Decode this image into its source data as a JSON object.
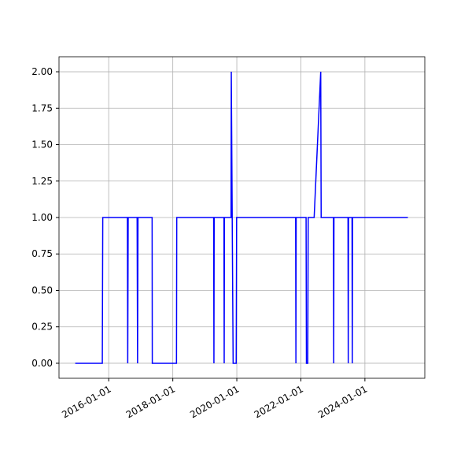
{
  "chart_data": {
    "type": "line",
    "color": "#0000ff",
    "grid": true,
    "x": [
      "2014-12-15",
      "2015-10-20",
      "2015-10-25",
      "2016-08-01",
      "2016-08-05",
      "2016-08-10",
      "2016-11-20",
      "2016-11-25",
      "2016-11-30",
      "2017-05-10",
      "2017-05-12",
      "2018-02-12",
      "2018-02-15",
      "2019-04-12",
      "2019-04-15",
      "2019-04-18",
      "2019-08-07",
      "2019-08-10",
      "2019-08-13",
      "2019-10-27",
      "2019-10-30",
      "2019-11-20",
      "2019-12-25",
      "2019-12-30",
      "2021-11-02",
      "2021-11-05",
      "2021-11-08",
      "2022-03-01",
      "2022-03-05",
      "2022-03-20",
      "2022-03-25",
      "2022-06-01",
      "2022-08-15",
      "2022-08-20",
      "2023-01-07",
      "2023-01-10",
      "2023-01-13",
      "2023-06-22",
      "2023-06-25",
      "2023-06-28",
      "2023-08-07",
      "2023-08-10",
      "2023-08-13",
      "2025-05-05"
    ],
    "series": [
      {
        "values": [
          0,
          0,
          1,
          1,
          0,
          1,
          1,
          0,
          1,
          1,
          0,
          0,
          1,
          1,
          0,
          1,
          1,
          0,
          1,
          1,
          2,
          0,
          0,
          1,
          1,
          0,
          1,
          1,
          0,
          0,
          1,
          1,
          2,
          1,
          1,
          0,
          1,
          1,
          0,
          1,
          1,
          0,
          1,
          1
        ]
      }
    ],
    "xlim": [
      "2014-06-13",
      "2025-11-14"
    ],
    "xticks": [
      "2016-01-01",
      "2018-01-01",
      "2020-01-01",
      "2022-01-01",
      "2024-01-01"
    ],
    "ylim": [
      -0.103,
      2.103
    ],
    "yticks": [
      {
        "value": 0,
        "label": "0.00"
      },
      {
        "value": 0.25,
        "label": "0.25"
      },
      {
        "value": 0.5,
        "label": "0.50"
      },
      {
        "value": 0.75,
        "label": "0.75"
      },
      {
        "value": 1,
        "label": "1.00"
      },
      {
        "value": 1.25,
        "label": "1.25"
      },
      {
        "value": 1.5,
        "label": "1.50"
      },
      {
        "value": 1.75,
        "label": "1.75"
      },
      {
        "value": 2,
        "label": "2.00"
      }
    ]
  }
}
